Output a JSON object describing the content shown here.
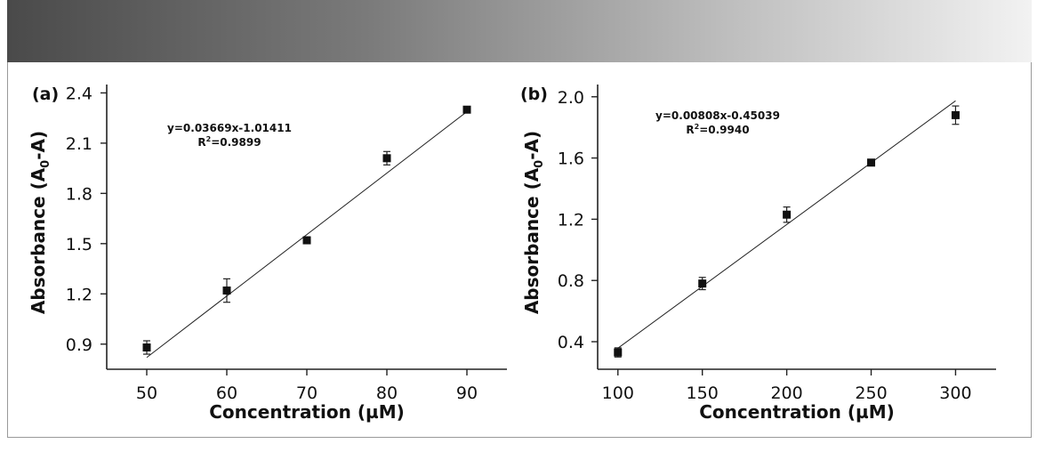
{
  "chart_data": [
    {
      "type": "scatter",
      "panel_label": "(a)",
      "title": "",
      "xlabel": "Concentration (µM)",
      "ylabel_main": "Absorbance (A",
      "ylabel_sub": "0",
      "ylabel_tail": "-A)",
      "xlim": [
        45,
        95
      ],
      "ylim": [
        0.75,
        2.45
      ],
      "xticks": [
        50,
        60,
        70,
        80,
        90
      ],
      "yticks": [
        0.9,
        1.2,
        1.5,
        1.8,
        2.1,
        2.4
      ],
      "xtick_labels": [
        "50",
        "60",
        "70",
        "80",
        "90"
      ],
      "ytick_labels": [
        "0.9",
        "1.2",
        "1.5",
        "1.8",
        "2.1",
        "2.4"
      ],
      "x": [
        50,
        60,
        70,
        80,
        90
      ],
      "y": [
        0.88,
        1.22,
        1.52,
        2.01,
        2.3
      ],
      "yerr": [
        0.04,
        0.07,
        0.02,
        0.04,
        0.015
      ],
      "fit": {
        "slope": 0.03669,
        "intercept": -1.01411,
        "x_range": [
          50,
          90
        ]
      },
      "equation": "y=0.03669x-1.01411",
      "r2_label": "R",
      "r2_sup": "2",
      "r2_value": "=0.9899"
    },
    {
      "type": "scatter",
      "panel_label": "(b)",
      "title": "",
      "xlabel": "Concentration (µM)",
      "ylabel_main": "Absorbance (A",
      "ylabel_sub": "0",
      "ylabel_tail": "-A)",
      "xlim": [
        88,
        324
      ],
      "ylim": [
        0.22,
        2.08
      ],
      "xticks": [
        100,
        150,
        200,
        250,
        300
      ],
      "yticks": [
        0.4,
        0.8,
        1.2,
        1.6,
        2.0
      ],
      "xtick_labels": [
        "100",
        "150",
        "200",
        "250",
        "300"
      ],
      "ytick_labels": [
        "0.4",
        "0.8",
        "1.2",
        "1.6",
        "2.0"
      ],
      "x": [
        100,
        150,
        200,
        250,
        300
      ],
      "y": [
        0.33,
        0.78,
        1.23,
        1.57,
        1.88
      ],
      "yerr": [
        0.03,
        0.04,
        0.05,
        0.02,
        0.06
      ],
      "fit": {
        "slope": 0.00808,
        "intercept": -0.45039,
        "x_range": [
          100,
          300
        ]
      },
      "equation": "y=0.00808x-0.45039",
      "r2_label": "R",
      "r2_sup": "2",
      "r2_value": "=0.9940"
    }
  ]
}
